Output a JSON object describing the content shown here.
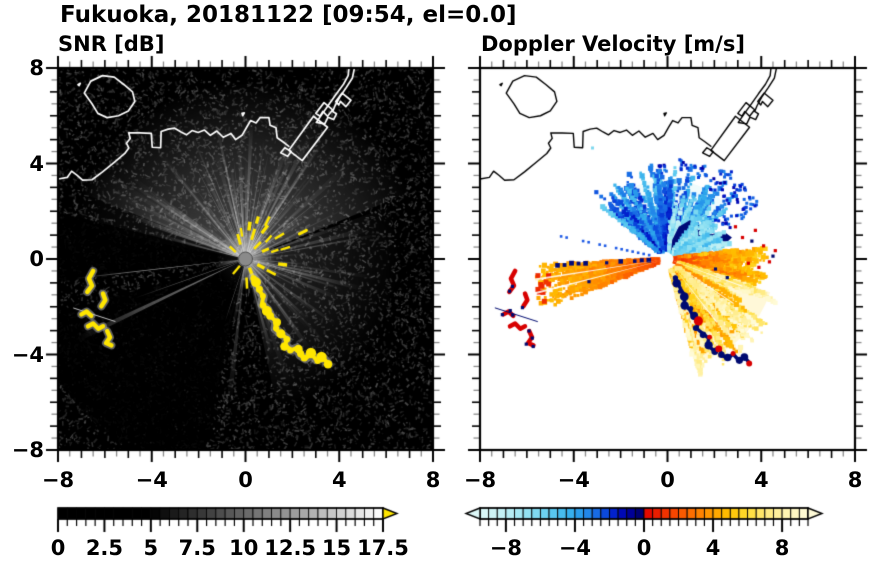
{
  "title": "Fukuoka, 20181122 [09:54, el=0.0]",
  "station": "Fukuoka",
  "date": "20181122",
  "time": "09:54",
  "elevation": "0.0",
  "panels": {
    "left": {
      "subtitle": "SNR [dB]",
      "xtick_labels": [
        "−8",
        "−4",
        "0",
        "4",
        "8"
      ],
      "ytick_labels": [
        "8",
        "4",
        "0",
        "−4",
        "−8"
      ]
    },
    "right": {
      "subtitle": "Doppler Velocity [m/s]",
      "xtick_labels": [
        "−8",
        "−4",
        "0",
        "4",
        "8"
      ],
      "ytick_labels": []
    }
  },
  "colorbars": {
    "snr": {
      "tick_labels": [
        "0",
        "2.5",
        "5",
        "7.5",
        "10",
        "12.5",
        "15",
        "17.5"
      ],
      "tick_values": [
        0,
        2.5,
        5,
        7.5,
        10,
        12.5,
        15,
        17.5
      ],
      "range": [
        0,
        17.5
      ],
      "overflow_color": "#FFE600"
    },
    "velocity": {
      "tick_labels": [
        "−8",
        "−4",
        "0",
        "4",
        "8"
      ],
      "tick_values": [
        -8,
        -4,
        0,
        4,
        8
      ],
      "range": [
        -9.5,
        9.5
      ],
      "under_color": "#DDF8F8",
      "over_color": "#FFFBD8"
    }
  },
  "chart_data": {
    "type": "heatmap",
    "subtype": "doppler_lidar_ppi_pair",
    "axes": {
      "xlim": [
        -8,
        8
      ],
      "ylim": [
        -8,
        8
      ],
      "xticks": [
        -8,
        -4,
        0,
        4,
        8
      ],
      "yticks": [
        8,
        4,
        0,
        -4,
        -8
      ],
      "minor_step": 0.5
    },
    "snr_panel": {
      "background": "#000000",
      "radar_center": [
        0,
        0
      ],
      "bright_fan_sectors": [
        [
          22,
          158
        ],
        [
          -78,
          20
        ],
        [
          148,
          170
        ]
      ],
      "dark_sectors": [
        [
          166,
          187
        ],
        [
          196,
          258
        ]
      ],
      "special_rays": [
        {
          "angle": 186.5,
          "r": 7.3,
          "w": 0.35,
          "alpha": 0.95
        },
        {
          "angle": 205.5,
          "r": 7.9,
          "w": 1.7,
          "alpha": 0.5
        },
        {
          "angle": 199.5,
          "r": 5.0,
          "w": 0.5,
          "alpha": 0.6
        },
        {
          "angle": 252,
          "r": 2.8,
          "w": 0.5,
          "alpha": 0.8
        },
        {
          "angle": 262,
          "r": 2.2,
          "w": 0.4,
          "alpha": 0.7
        }
      ],
      "saturated_specks_near_center": [
        [
          0.45,
          0.52
        ],
        [
          0.82,
          0.36
        ],
        [
          0.3,
          0.92
        ],
        [
          -0.26,
          0.72
        ],
        [
          -0.52,
          0.36
        ],
        [
          0.96,
          0.78
        ],
        [
          1.22,
          0.32
        ],
        [
          0.62,
          -0.28
        ],
        [
          1.02,
          -0.52
        ],
        [
          0.22,
          -0.48
        ],
        [
          -0.32,
          -0.38
        ],
        [
          1.36,
          0.92
        ],
        [
          0.76,
          1.18
        ],
        [
          0.16,
          1.32
        ],
        [
          1.62,
          0.42
        ],
        [
          1.52,
          -0.22
        ],
        [
          -0.16,
          1.06
        ],
        [
          0.5,
          1.6
        ],
        [
          0.9,
          1.5
        ],
        [
          0.05,
          -0.9
        ]
      ],
      "saturated_chain": [
        [
          0.32,
          -0.78
        ],
        [
          0.45,
          -1.02
        ],
        [
          0.58,
          -1.3
        ],
        [
          0.76,
          -1.56
        ],
        [
          0.7,
          -1.9
        ],
        [
          0.95,
          -2.12
        ],
        [
          1.1,
          -2.42
        ],
        [
          1.3,
          -2.62
        ],
        [
          1.26,
          -2.92
        ],
        [
          1.5,
          -3.12
        ],
        [
          1.76,
          -3.32
        ],
        [
          1.7,
          -3.62
        ],
        [
          1.96,
          -3.82
        ],
        [
          2.2,
          -3.72
        ],
        [
          2.32,
          -4.02
        ],
        [
          2.56,
          -4.18
        ],
        [
          2.8,
          -3.98
        ],
        [
          3.02,
          -4.22
        ],
        [
          3.3,
          -4.12
        ],
        [
          3.52,
          -4.38
        ]
      ],
      "saturated_cluster": [
        [
          [
            -6.5,
            -0.5
          ],
          [
            -6.68,
            -0.82
          ],
          [
            -6.55,
            -1.12
          ],
          [
            -6.75,
            -1.38
          ]
        ],
        [
          [
            -6.08,
            -1.45
          ],
          [
            -5.98,
            -1.72
          ],
          [
            -6.15,
            -1.98
          ]
        ],
        [
          [
            -7.0,
            -2.32
          ],
          [
            -6.78,
            -2.2
          ],
          [
            -6.58,
            -2.38
          ]
        ],
        [
          [
            -6.72,
            -2.82
          ],
          [
            -6.5,
            -2.7
          ],
          [
            -6.28,
            -2.92
          ],
          [
            -6.08,
            -2.82
          ]
        ],
        [
          [
            -5.9,
            -3.02
          ],
          [
            -5.78,
            -3.28
          ],
          [
            -5.95,
            -3.52
          ],
          [
            -5.72,
            -3.62
          ]
        ]
      ],
      "saturated_dash": [
        [
          2.3,
          1.05
        ],
        [
          2.6,
          1.2
        ]
      ],
      "thin_diag_line": [
        [
          -7.35,
          -2.05
        ],
        [
          -5.55,
          -2.62
        ]
      ]
    },
    "velocity_panel": {
      "background": "#ffffff",
      "negative_fan": {
        "angles": [
          40,
          142
        ],
        "r": [
          0.4,
          4.2
        ],
        "values": [
          -1,
          -5
        ]
      },
      "strong_negative_blob": [
        [
          0.15,
          0.2
        ],
        [
          1.3,
          0.35
        ],
        [
          2.3,
          0.5
        ],
        [
          2.75,
          0.9
        ],
        [
          2.4,
          1.15
        ],
        [
          1.9,
          1.05
        ],
        [
          1.45,
          1.35
        ],
        [
          0.95,
          1.62
        ],
        [
          0.48,
          1.35
        ],
        [
          0.2,
          0.8
        ]
      ],
      "strong_negative_band": {
        "angles": [
          8,
          55
        ],
        "r": [
          0.3,
          2.8
        ],
        "values": [
          -6,
          -9
        ]
      },
      "navy_streak_angles": [
        58,
        66,
        74,
        82
      ],
      "positive_band": {
        "angles": [
          -22,
          8
        ],
        "r": [
          0.3,
          4.4
        ],
        "values": [
          1,
          4
        ]
      },
      "positive_fan": {
        "angles": [
          -75,
          -18
        ],
        "r": [
          0.5,
          5.2
        ],
        "values": [
          4,
          9
        ]
      },
      "west_wedge": {
        "angles": [
          183,
          202
        ],
        "r": [
          0.4,
          5.8
        ],
        "values": [
          2,
          5
        ]
      },
      "white_gap_rays": [
        188.8,
        194.5,
        252,
        262,
        -20,
        -34,
        -52
      ],
      "blue_ray": {
        "angle": 168,
        "r": [
          0.8,
          4.7
        ]
      },
      "chain_red_indices": [
        7,
        10,
        13,
        16,
        19
      ],
      "cyan_patches": [
        [
          2.3,
          1.6
        ],
        [
          3.0,
          2.0
        ],
        [
          3.5,
          2.4
        ],
        [
          2.6,
          2.6
        ],
        [
          2.0,
          3.2
        ],
        [
          1.4,
          3.7
        ],
        [
          2.4,
          3.5
        ],
        [
          3.1,
          3.0
        ],
        [
          0.8,
          4.0
        ],
        [
          -0.2,
          3.9
        ]
      ],
      "red_specks": [
        [
          3.2,
          0.9
        ],
        [
          3.75,
          1.2
        ],
        [
          4.1,
          0.55
        ],
        [
          4.35,
          -0.12
        ],
        [
          3.9,
          -0.35
        ],
        [
          2.9,
          1.35
        ],
        [
          3.45,
          -0.18
        ],
        [
          4.6,
          0.35
        ]
      ],
      "navy_specks": [
        [
          2.05,
          -0.42
        ],
        [
          2.55,
          -0.78
        ],
        [
          4.5,
          0.12
        ],
        [
          3.6,
          0.75
        ],
        [
          -3.35,
          -0.95
        ]
      ],
      "cyan_speck": [
        -3.2,
        4.65
      ]
    },
    "colormap_velocity_stops": [
      [
        -9.5,
        221,
        248,
        248
      ],
      [
        -8,
        191,
        240,
        244
      ],
      [
        -6.5,
        138,
        223,
        242
      ],
      [
        -5,
        79,
        194,
        238
      ],
      [
        -4,
        46,
        168,
        236
      ],
      [
        -3,
        30,
        124,
        232
      ],
      [
        -2.2,
        10,
        70,
        220
      ],
      [
        -1.6,
        0,
        22,
        200
      ],
      [
        -1.0,
        0,
        0,
        168
      ],
      [
        -0.4,
        0,
        0,
        128
      ],
      [
        -0.02,
        0,
        0,
        96
      ],
      [
        0.02,
        224,
        0,
        0
      ],
      [
        1,
        238,
        40,
        0
      ],
      [
        2,
        250,
        80,
        0
      ],
      [
        3,
        255,
        120,
        0
      ],
      [
        4,
        255,
        160,
        0
      ],
      [
        5,
        255,
        196,
        0
      ],
      [
        6,
        255,
        220,
        50
      ],
      [
        7,
        255,
        232,
        120
      ],
      [
        8,
        255,
        242,
        168
      ],
      [
        9,
        255,
        249,
        204
      ],
      [
        9.5,
        255,
        251,
        216
      ]
    ],
    "coastline": {
      "mainland": [
        [
          -8.0,
          3.35
        ],
        [
          -7.6,
          3.42
        ],
        [
          -7.42,
          3.68
        ],
        [
          -7.18,
          3.5
        ],
        [
          -6.95,
          3.3
        ],
        [
          -6.55,
          3.32
        ],
        [
          -6.1,
          3.65
        ],
        [
          -5.6,
          4.05
        ],
        [
          -5.15,
          4.42
        ],
        [
          -4.98,
          4.65
        ],
        [
          -5.08,
          4.85
        ],
        [
          -4.92,
          5.05
        ],
        [
          -4.98,
          5.28
        ],
        [
          -4.5,
          5.28
        ],
        [
          -4.02,
          5.26
        ],
        [
          -3.98,
          4.68
        ],
        [
          -3.62,
          4.66
        ],
        [
          -3.6,
          5.34
        ],
        [
          -3.3,
          5.44
        ],
        [
          -3.02,
          5.48
        ],
        [
          -2.75,
          5.32
        ],
        [
          -2.52,
          5.2
        ],
        [
          -2.28,
          5.38
        ],
        [
          -2.02,
          5.3
        ],
        [
          -1.75,
          5.4
        ],
        [
          -1.5,
          5.18
        ],
        [
          -1.22,
          5.36
        ],
        [
          -0.95,
          5.1
        ],
        [
          -0.62,
          5.26
        ],
        [
          -0.42,
          5.0
        ],
        [
          -0.15,
          5.18
        ],
        [
          0.05,
          5.52
        ],
        [
          0.22,
          5.8
        ],
        [
          0.45,
          5.7
        ],
        [
          0.62,
          5.92
        ],
        [
          1.0,
          5.92
        ],
        [
          1.05,
          5.6
        ],
        [
          1.3,
          5.5
        ],
        [
          1.35,
          5.08
        ],
        [
          1.58,
          4.92
        ],
        [
          1.85,
          4.72
        ]
      ],
      "island": [
        [
          -6.88,
          6.95
        ],
        [
          -6.6,
          7.45
        ],
        [
          -6.1,
          7.68
        ],
        [
          -5.6,
          7.62
        ],
        [
          -5.18,
          7.3
        ],
        [
          -4.82,
          7.0
        ],
        [
          -4.72,
          6.6
        ],
        [
          -5.0,
          6.2
        ],
        [
          -5.42,
          6.0
        ],
        [
          -5.9,
          5.92
        ],
        [
          -6.3,
          6.1
        ],
        [
          -6.55,
          6.5
        ]
      ],
      "islets": [
        [
          [
            -7.15,
            7.3
          ],
          [
            -7.05,
            7.36
          ],
          [
            -7.1,
            7.26
          ]
        ],
        [
          [
            -0.12,
            6.0
          ],
          [
            -0.05,
            6.12
          ],
          [
            -0.15,
            6.1
          ]
        ]
      ],
      "piers": [
        [
          [
            1.85,
            4.55
          ],
          [
            2.9,
            5.98
          ],
          [
            3.5,
            5.52
          ],
          [
            2.42,
            4.12
          ]
        ],
        [
          [
            1.5,
            4.45
          ],
          [
            1.8,
            4.3
          ],
          [
            1.95,
            4.5
          ],
          [
            1.68,
            4.66
          ]
        ],
        [
          [
            3.0,
            6.1
          ],
          [
            3.35,
            6.55
          ],
          [
            3.72,
            6.25
          ],
          [
            3.5,
            5.98
          ],
          [
            3.3,
            6.18
          ],
          [
            3.18,
            5.98
          ]
        ],
        [
          [
            3.85,
            6.6
          ],
          [
            4.12,
            6.95
          ],
          [
            4.5,
            6.65
          ],
          [
            4.28,
            6.38
          ],
          [
            4.05,
            6.6
          ],
          [
            3.98,
            6.45
          ]
        ]
      ],
      "hook": [
        [
          3.02,
          5.72
        ],
        [
          3.3,
          6.12
        ],
        [
          3.58,
          6.5
        ],
        [
          3.88,
          6.92
        ],
        [
          4.18,
          7.32
        ],
        [
          4.38,
          7.68
        ],
        [
          4.42,
          8.05
        ],
        [
          4.66,
          8.05
        ],
        [
          4.56,
          7.58
        ],
        [
          4.3,
          7.18
        ],
        [
          4.02,
          6.78
        ],
        [
          3.82,
          6.42
        ],
        [
          3.72,
          6.18
        ],
        [
          3.88,
          6.08
        ],
        [
          3.76,
          5.84
        ],
        [
          3.52,
          5.94
        ],
        [
          3.38,
          5.66
        ],
        [
          3.02,
          5.72
        ]
      ]
    }
  }
}
